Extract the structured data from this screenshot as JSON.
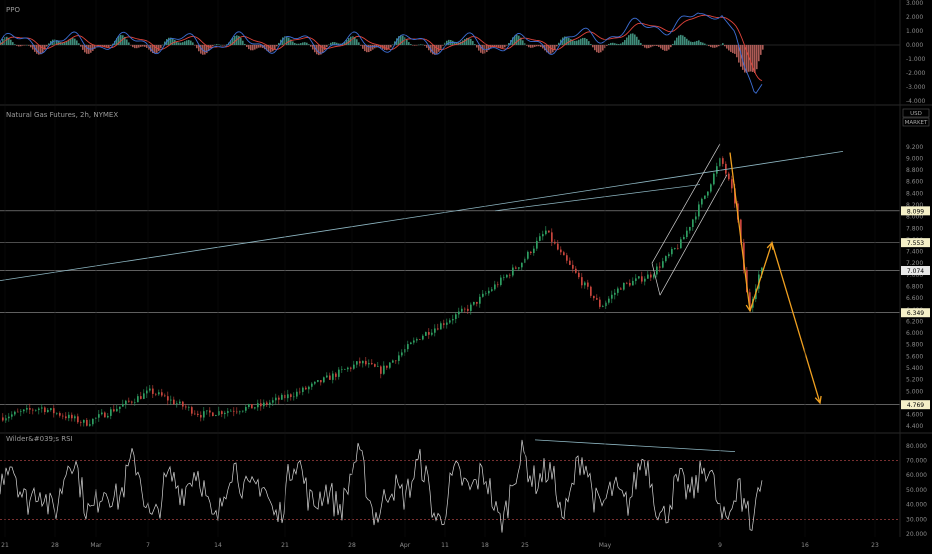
{
  "chart_data": [
    {
      "panel": "ppo",
      "type": "line",
      "title": "PPO",
      "ylim": [
        -4.2,
        3.2
      ],
      "yticks": [
        "3.000",
        "2.000",
        "1.000",
        "0.000",
        "-1.000",
        "-2.000",
        "-3.000",
        "-4.000"
      ],
      "ytick_values": [
        3,
        2,
        1,
        0,
        -1,
        -2,
        -3,
        -4
      ],
      "series": [
        {
          "color": "#3d6fd6",
          "role": "ppo"
        },
        {
          "color": "#e0433a",
          "role": "signal"
        },
        {
          "color": "#3fae8e",
          "role": "histogram"
        }
      ]
    },
    {
      "panel": "price",
      "type": "candlestick",
      "title": "Natural Gas Futures, 2h, NYMEX",
      "badges": [
        "USD",
        "MARKET"
      ],
      "ylim": [
        4.3,
        9.9
      ],
      "yticks": [
        "9.200",
        "9.000",
        "8.800",
        "8.600",
        "8.400",
        "8.200",
        "8.000",
        "7.800",
        "7.600",
        "7.400",
        "7.200",
        "7.000",
        "6.800",
        "6.600",
        "6.400",
        "6.200",
        "6.000",
        "5.800",
        "5.600",
        "5.400",
        "5.200",
        "5.000",
        "4.800",
        "4.600",
        "4.400"
      ],
      "ytick_values": [
        9.2,
        9.0,
        8.8,
        8.6,
        8.4,
        8.2,
        8.0,
        7.8,
        7.6,
        7.4,
        7.2,
        7.0,
        6.8,
        6.6,
        6.4,
        6.2,
        6.0,
        5.8,
        5.6,
        5.4,
        5.2,
        5.0,
        4.8,
        4.6,
        4.4
      ],
      "price_levels": [
        {
          "label": "8.099",
          "value": 8.099
        },
        {
          "label": "7.553",
          "value": 7.553
        },
        {
          "label": "7.074",
          "value": 7.074
        },
        {
          "label": "6.349",
          "value": 6.349
        },
        {
          "label": "4.769",
          "value": 4.769
        }
      ],
      "current_price": "7.074",
      "colors": {
        "up": "#2e9e62",
        "down": "#c8453c",
        "projection": "#f0a020",
        "line": "#8fb8c4"
      }
    },
    {
      "panel": "rsi",
      "type": "line",
      "title": "Wilder&#039;s RSI",
      "ylim": [
        18,
        88
      ],
      "yticks": [
        "80.000",
        "70.000",
        "60.000",
        "50.000",
        "40.000",
        "30.000",
        "20.000"
      ],
      "ytick_values": [
        80,
        70,
        60,
        50,
        40,
        30,
        20
      ],
      "bands": [
        70,
        30
      ],
      "series": [
        {
          "color": "#d8d8d8"
        }
      ]
    }
  ],
  "x_axis": {
    "labels": [
      "21",
      "28",
      "Mar",
      "7",
      "14",
      "21",
      "28",
      "Apr",
      "11",
      "18",
      "25",
      "May",
      "9",
      "16",
      "23"
    ]
  }
}
